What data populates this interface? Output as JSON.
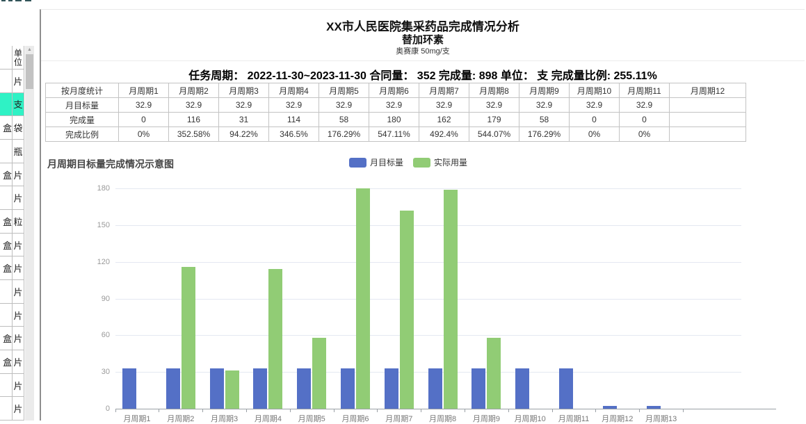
{
  "background_grid": {
    "unit_header": "单位",
    "highlight_color": "#2ff2c5",
    "highlighted_row_index": 1,
    "rows": [
      {
        "a": "",
        "unit": "片"
      },
      {
        "a": "",
        "unit": "支"
      },
      {
        "a": "盒",
        "unit": "袋"
      },
      {
        "a": "",
        "unit": "瓶"
      },
      {
        "a": "盒",
        "unit": "片"
      },
      {
        "a": "",
        "unit": "片"
      },
      {
        "a": "盒",
        "unit": "粒"
      },
      {
        "a": "盒",
        "unit": "片"
      },
      {
        "a": "盒",
        "unit": "片"
      },
      {
        "a": "",
        "unit": "片"
      },
      {
        "a": "",
        "unit": "片"
      },
      {
        "a": "盒",
        "unit": "片"
      },
      {
        "a": "盒",
        "unit": "片"
      },
      {
        "a": "",
        "unit": "片"
      },
      {
        "a": "",
        "unit": "片"
      }
    ],
    "scrollbar": {
      "up_arrow": "▲"
    }
  },
  "report": {
    "title": "XX市人民医院集采药品完成情况分析",
    "subtitle": "替加环素",
    "spec": "奥赛康 50mg/支",
    "summary": "任务周期： 2022-11-30~2023-11-30 合同量： 352 完成量: 898 单位： 支 完成量比例: 255.11%"
  },
  "table": {
    "corner_header": "按月度统计",
    "row_headers": [
      "月目标量",
      "完成量",
      "完成比例"
    ],
    "columns": [
      "月周期1",
      "月周期2",
      "月周期3",
      "月周期4",
      "月周期5",
      "月周期6",
      "月周期7",
      "月周期8",
      "月周期9",
      "月周期10",
      "月周期11",
      "月周期12"
    ],
    "target": [
      "32.9",
      "32.9",
      "32.9",
      "32.9",
      "32.9",
      "32.9",
      "32.9",
      "32.9",
      "32.9",
      "32.9",
      "32.9",
      ""
    ],
    "completed": [
      "0",
      "116",
      "31",
      "114",
      "58",
      "180",
      "162",
      "179",
      "58",
      "0",
      "0",
      ""
    ],
    "ratio": [
      "0%",
      "352.58%",
      "94.22%",
      "346.5%",
      "176.29%",
      "547.11%",
      "492.4%",
      "544.07%",
      "176.29%",
      "0%",
      "0%",
      ""
    ]
  },
  "chart_data": {
    "type": "bar",
    "title": "月周期目标量完成情况示意图",
    "categories": [
      "月周期1",
      "月周期2",
      "月周期3",
      "月周期4",
      "月周期5",
      "月周期6",
      "月周期7",
      "月周期8",
      "月周期9",
      "月周期10",
      "月周期11",
      "月周期12",
      "月周期13"
    ],
    "series": [
      {
        "name": "月目标量",
        "color": "#5470c6",
        "values": [
          32.9,
          32.9,
          32.9,
          32.9,
          32.9,
          32.9,
          32.9,
          32.9,
          32.9,
          32.9,
          32.9,
          2,
          2
        ]
      },
      {
        "name": "实际用量",
        "color": "#91cc75",
        "values": [
          0,
          116,
          31,
          114,
          58,
          180,
          162,
          179,
          58,
          0,
          0,
          0,
          0
        ]
      }
    ],
    "xlabel": "",
    "ylabel": "",
    "ylim": [
      0,
      180
    ],
    "ytick_step": 30,
    "grid": true,
    "legend_position": "top-center"
  }
}
